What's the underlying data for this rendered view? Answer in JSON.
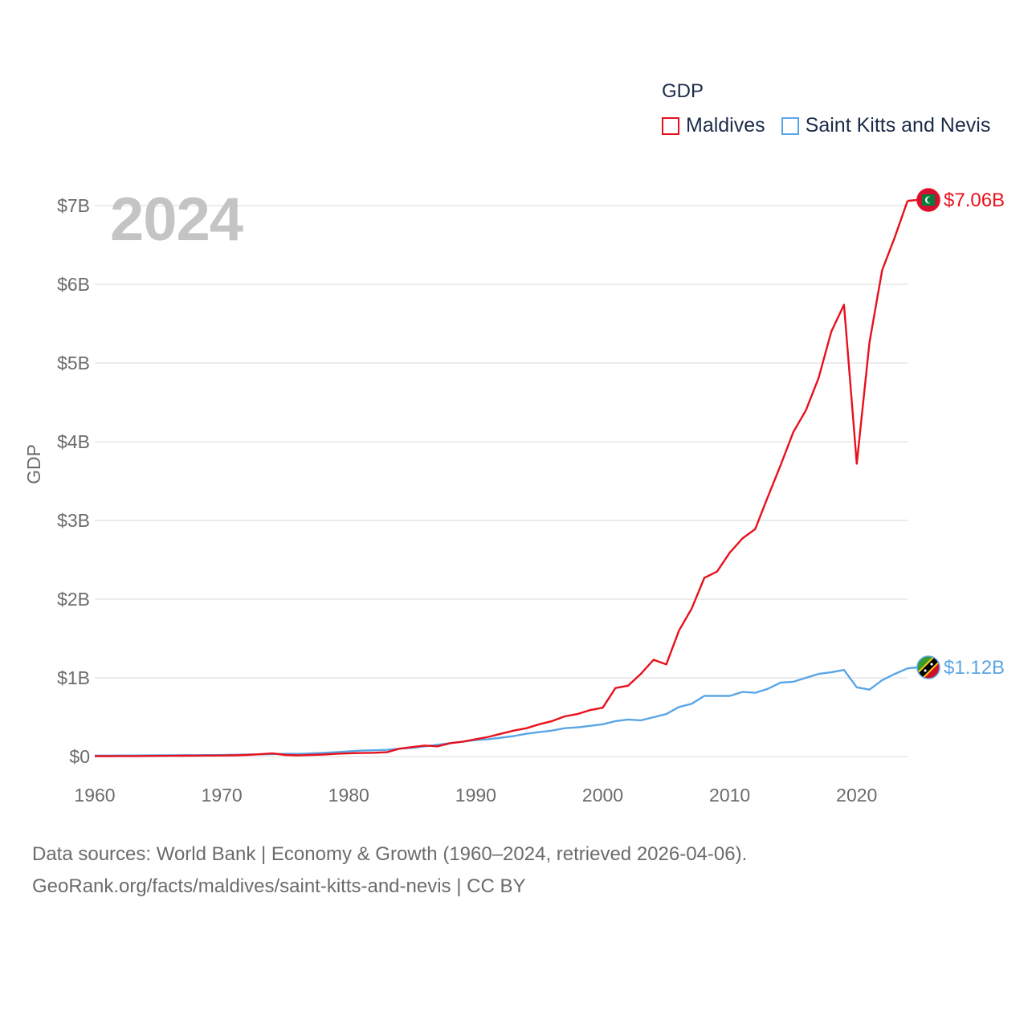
{
  "colors": {
    "maldives": "#e8101c",
    "skn": "#5aa5e6",
    "grid": "#e6e6e6",
    "axis_text": "#6b6b6b"
  },
  "legend": {
    "title": "GDP",
    "items": [
      {
        "name": "Maldives"
      },
      {
        "name": "Saint Kitts and Nevis"
      }
    ]
  },
  "year_display": "2024",
  "footer": {
    "line1": "Data sources: World Bank | Economy & Growth (1960–2024, retrieved 2026-04-06).",
    "line2": "GeoRank.org/facts/maldives/saint-kitts-and-nevis | CC BY"
  },
  "chart_data": {
    "type": "line",
    "title": "",
    "xlabel": "",
    "ylabel": "GDP",
    "xlim": [
      1960,
      2024
    ],
    "ylim": [
      0,
      7
    ],
    "y_unit": "billion USD",
    "x_ticks": [
      1960,
      1970,
      1980,
      1990,
      2000,
      2010,
      2020
    ],
    "y_ticks": [
      0,
      1,
      2,
      3,
      4,
      5,
      6,
      7
    ],
    "y_tick_labels": [
      "$0",
      "$1B",
      "$2B",
      "$3B",
      "$4B",
      "$5B",
      "$6B",
      "$7B"
    ],
    "x": [
      1960,
      1961,
      1962,
      1963,
      1964,
      1965,
      1966,
      1967,
      1968,
      1969,
      1970,
      1971,
      1972,
      1973,
      1974,
      1975,
      1976,
      1977,
      1978,
      1979,
      1980,
      1981,
      1982,
      1983,
      1984,
      1985,
      1986,
      1987,
      1988,
      1989,
      1990,
      1991,
      1992,
      1993,
      1994,
      1995,
      1996,
      1997,
      1998,
      1999,
      2000,
      2001,
      2002,
      2003,
      2004,
      2005,
      2006,
      2007,
      2008,
      2009,
      2010,
      2011,
      2012,
      2013,
      2014,
      2015,
      2016,
      2017,
      2018,
      2019,
      2020,
      2021,
      2022,
      2023,
      2024
    ],
    "series": [
      {
        "name": "Maldives",
        "end_label": "$7.06B",
        "values": [
          0.005,
          0.005,
          0.006,
          0.006,
          0.007,
          0.008,
          0.009,
          0.01,
          0.011,
          0.012,
          0.013,
          0.015,
          0.02,
          0.03,
          0.04,
          0.02,
          0.015,
          0.02,
          0.025,
          0.035,
          0.042,
          0.045,
          0.048,
          0.055,
          0.1,
          0.12,
          0.14,
          0.13,
          0.17,
          0.19,
          0.22,
          0.25,
          0.29,
          0.33,
          0.36,
          0.41,
          0.45,
          0.51,
          0.54,
          0.59,
          0.62,
          0.87,
          0.9,
          1.05,
          1.23,
          1.17,
          1.6,
          1.88,
          2.27,
          2.35,
          2.59,
          2.77,
          2.89,
          3.3,
          3.7,
          4.12,
          4.4,
          4.81,
          5.4,
          5.74,
          3.72,
          5.26,
          6.18,
          6.6,
          7.06
        ]
      },
      {
        "name": "Saint Kitts and Nevis",
        "end_label": "$1.12B",
        "values": [
          0.012,
          0.012,
          0.013,
          0.013,
          0.014,
          0.015,
          0.016,
          0.017,
          0.017,
          0.018,
          0.019,
          0.022,
          0.025,
          0.028,
          0.032,
          0.035,
          0.034,
          0.04,
          0.047,
          0.055,
          0.065,
          0.075,
          0.08,
          0.085,
          0.1,
          0.11,
          0.13,
          0.15,
          0.17,
          0.19,
          0.21,
          0.22,
          0.24,
          0.26,
          0.29,
          0.31,
          0.33,
          0.36,
          0.37,
          0.39,
          0.41,
          0.45,
          0.47,
          0.46,
          0.5,
          0.54,
          0.63,
          0.67,
          0.77,
          0.77,
          0.77,
          0.82,
          0.81,
          0.86,
          0.94,
          0.95,
          1.0,
          1.05,
          1.07,
          1.1,
          0.88,
          0.85,
          0.97,
          1.05,
          1.12
        ]
      }
    ]
  }
}
